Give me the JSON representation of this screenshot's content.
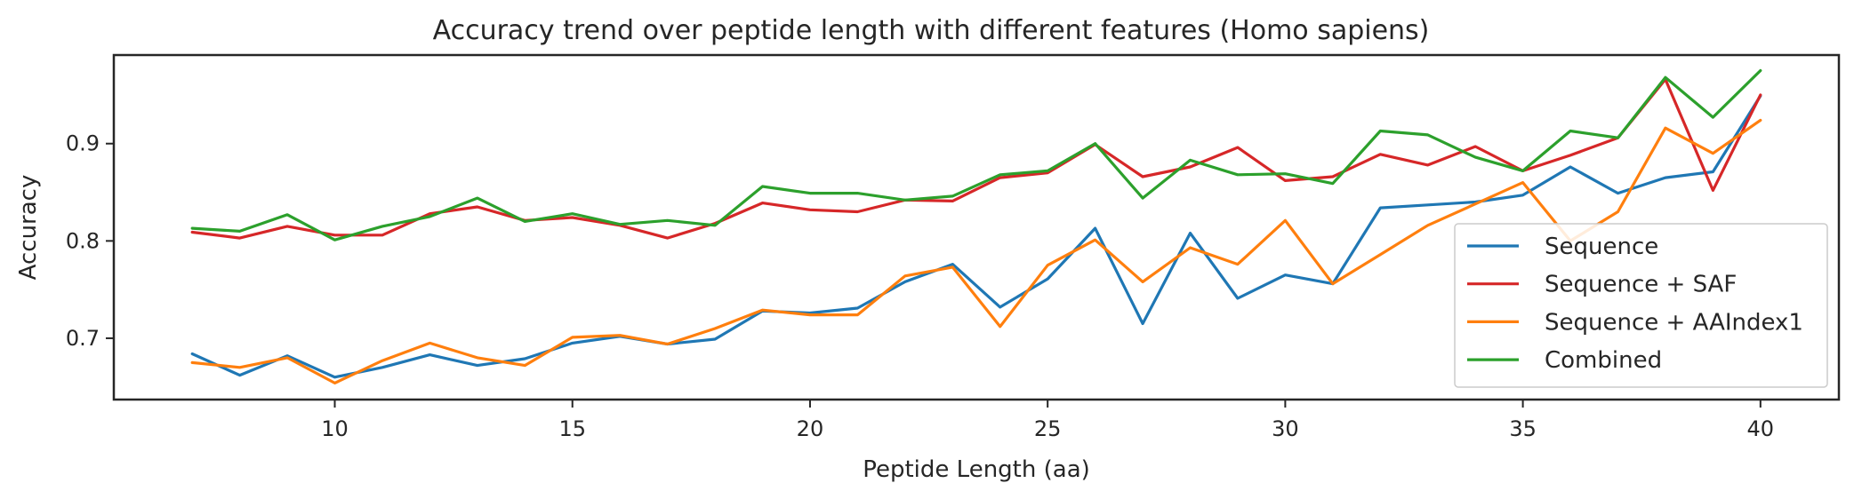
{
  "chart_data": {
    "type": "line",
    "title": "Accuracy trend over peptide length with different features (Homo sapiens)",
    "xlabel": "Peptide Length (aa)",
    "ylabel": "Accuracy",
    "xlim": [
      5.35,
      41.65
    ],
    "ylim": [
      0.637,
      0.991
    ],
    "xticks": [
      10,
      15,
      20,
      25,
      30,
      35,
      40
    ],
    "yticks": [
      0.7,
      0.8,
      0.9
    ],
    "xtick_labels": [
      "10",
      "15",
      "20",
      "25",
      "30",
      "35",
      "40"
    ],
    "ytick_labels": [
      "0.7",
      "0.8",
      "0.9"
    ],
    "grid": false,
    "legend_position": "lower-right",
    "x": [
      7,
      8,
      9,
      10,
      11,
      12,
      13,
      14,
      15,
      16,
      17,
      18,
      19,
      20,
      21,
      22,
      23,
      24,
      25,
      26,
      27,
      28,
      29,
      30,
      31,
      32,
      33,
      34,
      35,
      36,
      37,
      38,
      39,
      40
    ],
    "series": [
      {
        "name": "Sequence",
        "color": "#1f77b4",
        "values": [
          0.684,
          0.662,
          0.682,
          0.66,
          0.67,
          0.683,
          0.672,
          0.679,
          0.695,
          0.702,
          0.694,
          0.699,
          0.728,
          0.726,
          0.731,
          0.758,
          0.776,
          0.732,
          0.761,
          0.813,
          0.715,
          0.808,
          0.741,
          0.765,
          0.756,
          0.834,
          0.837,
          0.84,
          0.847,
          0.876,
          0.849,
          0.865,
          0.871,
          0.949
        ]
      },
      {
        "name": "Sequence + SAF",
        "color": "#d62728",
        "values": [
          0.809,
          0.803,
          0.815,
          0.806,
          0.806,
          0.828,
          0.835,
          0.821,
          0.824,
          0.816,
          0.803,
          0.818,
          0.839,
          0.832,
          0.83,
          0.842,
          0.841,
          0.865,
          0.87,
          0.899,
          0.866,
          0.876,
          0.896,
          0.862,
          0.866,
          0.889,
          0.878,
          0.897,
          0.872,
          0.888,
          0.906,
          0.966,
          0.852,
          0.95
        ]
      },
      {
        "name": "Sequence + AAIndex1",
        "color": "#ff7f0e",
        "values": [
          0.675,
          0.67,
          0.68,
          0.654,
          0.677,
          0.695,
          0.68,
          0.672,
          0.701,
          0.703,
          0.694,
          0.71,
          0.729,
          0.724,
          0.724,
          0.764,
          0.773,
          0.712,
          0.775,
          0.801,
          0.758,
          0.793,
          0.776,
          0.821,
          0.756,
          0.786,
          0.816,
          0.838,
          0.86,
          0.8,
          0.83,
          0.916,
          0.89,
          0.924
        ]
      },
      {
        "name": "Combined",
        "color": "#2ca02c",
        "values": [
          0.813,
          0.81,
          0.827,
          0.801,
          0.815,
          0.825,
          0.844,
          0.82,
          0.828,
          0.817,
          0.821,
          0.816,
          0.856,
          0.849,
          0.849,
          0.842,
          0.846,
          0.868,
          0.872,
          0.9,
          0.844,
          0.883,
          0.868,
          0.869,
          0.859,
          0.913,
          0.909,
          0.886,
          0.872,
          0.913,
          0.906,
          0.968,
          0.927,
          0.975
        ]
      }
    ]
  }
}
